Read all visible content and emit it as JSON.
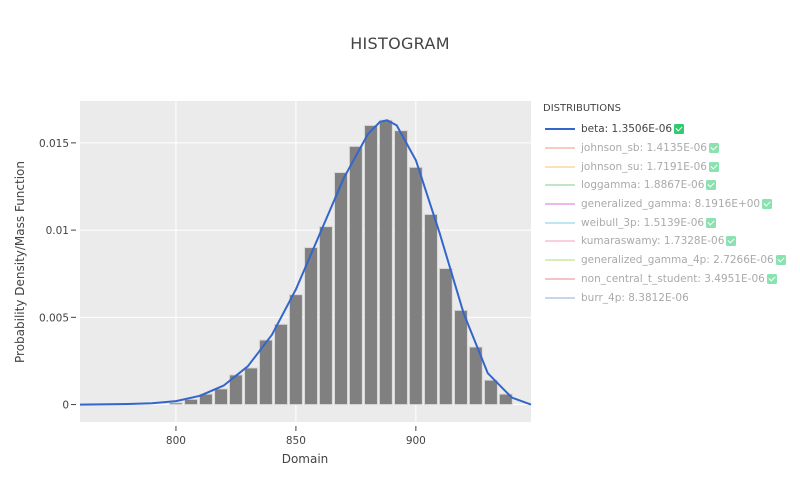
{
  "chart_data": {
    "type": "bar",
    "title": "HISTOGRAM",
    "xlabel": "Domain",
    "ylabel": "Probability Density/Mass Function",
    "xlim": [
      760,
      948
    ],
    "ylim": [
      -0.001,
      0.0174
    ],
    "x_ticks": [
      800,
      850,
      900
    ],
    "x_tick_labels": [
      "800",
      "850",
      "900"
    ],
    "y_ticks": [
      0,
      0.005,
      0.01,
      0.015
    ],
    "y_tick_labels": [
      "0",
      "0.005",
      "0.01",
      "0.015"
    ],
    "grid": true,
    "legend_position": "right",
    "bin_width": 6.25,
    "bins": {
      "x": [
        800.0,
        806.3,
        812.5,
        818.8,
        825.0,
        831.3,
        837.5,
        843.8,
        850.0,
        856.3,
        862.5,
        868.8,
        875.0,
        881.3,
        887.5,
        893.8,
        900.0,
        906.3,
        912.5,
        918.8,
        925.0,
        931.3,
        937.5
      ],
      "values": [
        0.0001,
        0.0003,
        0.0006,
        0.0009,
        0.0017,
        0.0021,
        0.0037,
        0.0046,
        0.0063,
        0.009,
        0.0102,
        0.0133,
        0.0148,
        0.016,
        0.0163,
        0.0157,
        0.0136,
        0.0109,
        0.0078,
        0.0054,
        0.0033,
        0.0014,
        0.0006
      ],
      "color": "#808080"
    },
    "series": [
      {
        "name": "beta",
        "type": "line",
        "color": "#3366cc",
        "x": [
          760,
          780,
          790,
          800,
          810,
          820,
          830,
          840,
          850,
          860,
          870,
          880,
          885,
          888,
          892,
          900,
          910,
          920,
          930,
          940,
          948
        ],
        "values": [
          0.0,
          3e-05,
          8e-05,
          0.0002,
          0.0005,
          0.0011,
          0.0022,
          0.004,
          0.0066,
          0.0098,
          0.013,
          0.0155,
          0.0162,
          0.0163,
          0.016,
          0.014,
          0.0098,
          0.0052,
          0.0018,
          0.0004,
          0.0
        ]
      }
    ],
    "legend": {
      "title": "DISTRIBUTIONS",
      "entries": [
        {
          "name": "beta",
          "label": "beta: 1.3506E-06",
          "color": "#3366cc",
          "checked": true,
          "active": true
        },
        {
          "name": "johnson_sb",
          "label": "johnson_sb: 1.4135E-06",
          "color": "#f4a08c",
          "checked": true,
          "active": false
        },
        {
          "name": "johnson_su",
          "label": "johnson_su: 1.7191E-06",
          "color": "#fcc97a",
          "checked": true,
          "active": false
        },
        {
          "name": "loggamma",
          "label": "loggamma: 1.8867E-06",
          "color": "#8fd18f",
          "checked": true,
          "active": false
        },
        {
          "name": "generalized_gamma",
          "label": "generalized_gamma: 8.1916E+00",
          "color": "#d87be0",
          "checked": true,
          "active": false
        },
        {
          "name": "weibull_3p",
          "label": "weibull_3p: 1.5139E-06",
          "color": "#8ad3e8",
          "checked": true,
          "active": false
        },
        {
          "name": "kumaraswamy",
          "label": "kumaraswamy: 1.7328E-06",
          "color": "#f7a8c4",
          "checked": true,
          "active": false
        },
        {
          "name": "generalized_gamma_4p",
          "label": "generalized_gamma_4p: 2.7266E-06",
          "color": "#b9de7f",
          "checked": true,
          "active": false
        },
        {
          "name": "non_central_t_student",
          "label": "non_central_t_student: 3.4951E-06",
          "color": "#e8959a",
          "checked": true,
          "active": false
        },
        {
          "name": "burr_4p",
          "label": "burr_4p: 8.3812E-06",
          "color": "#9db5d3",
          "checked": false,
          "active": false
        }
      ]
    }
  },
  "colors": {
    "plot_bg": "#ebebeb",
    "grid": "#ffffff",
    "bar": "#808080",
    "bar_edge": "#d9d9d9",
    "check": "#2ecc71"
  }
}
